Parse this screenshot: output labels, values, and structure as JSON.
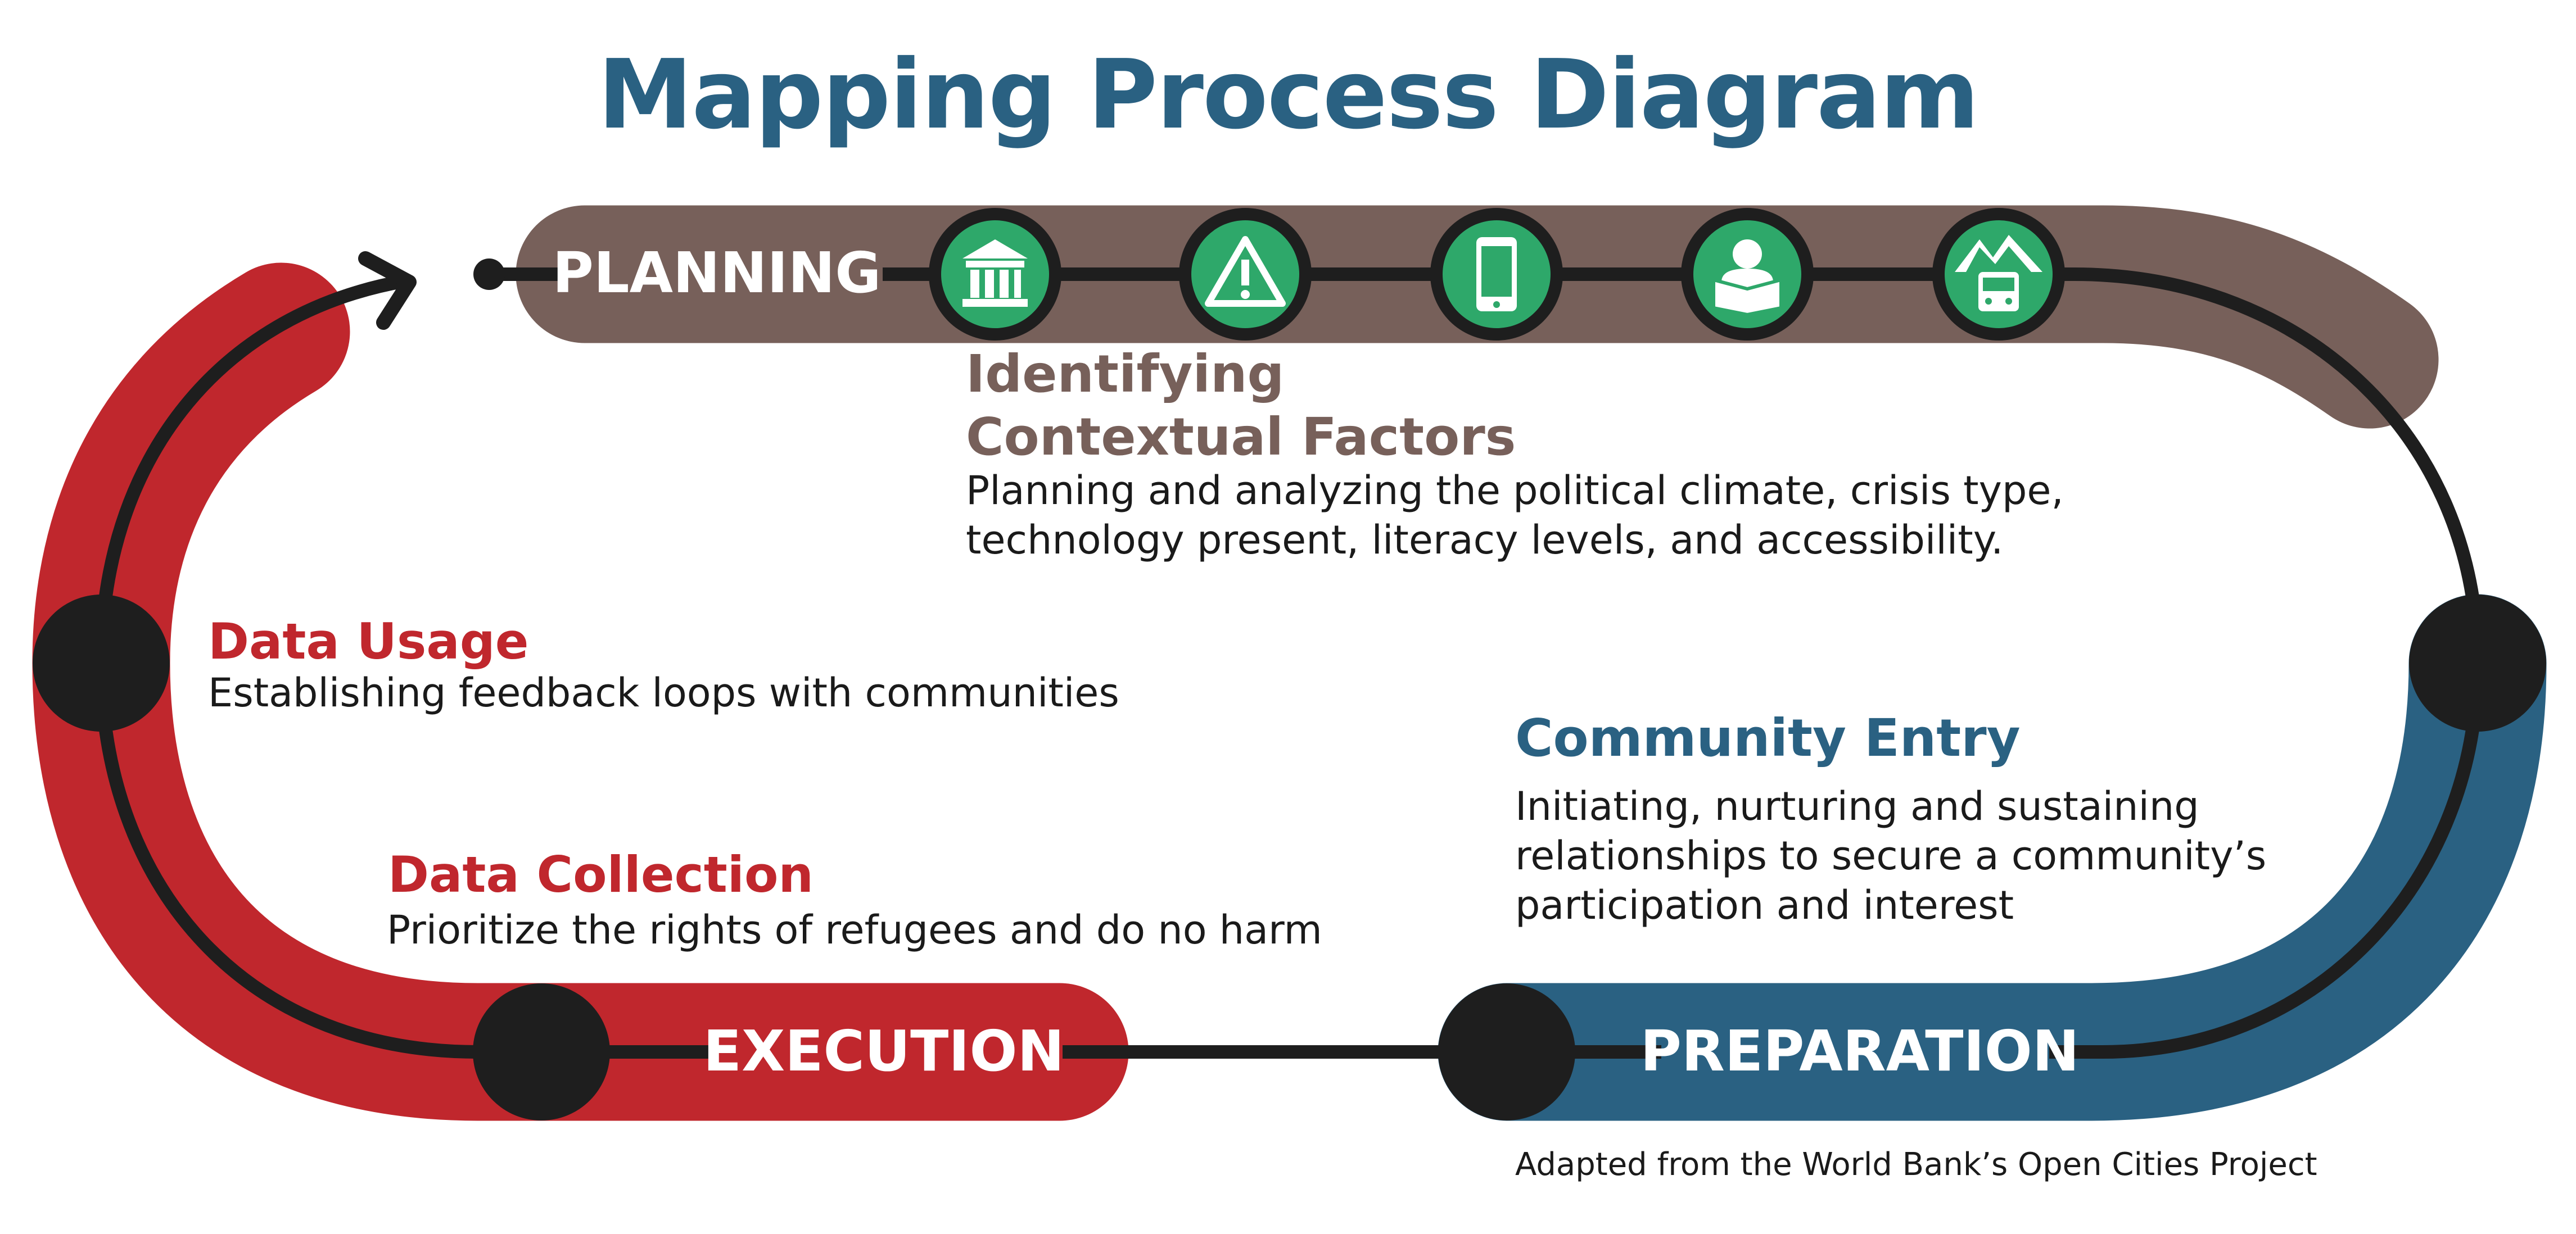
{
  "title": "Mapping Process Diagram",
  "stages": {
    "planning": "PLANNING",
    "preparation": "PREPARATION",
    "execution": "EXECUTION"
  },
  "sections": {
    "contextual": {
      "heading_line1": "Identifying",
      "heading_line2": "Contextual Factors",
      "body_line1": "Planning and analyzing the political climate, crisis type,",
      "body_line2": "technology present, literacy levels, and accessibility."
    },
    "community_entry": {
      "heading": "Community Entry",
      "body_line1": "Initiating, nurturing and sustaining",
      "body_line2": "relationships to secure a community’s",
      "body_line3": "participation and interest"
    },
    "data_usage": {
      "heading": "Data Usage",
      "body": "Establishing feedback loops with communities"
    },
    "data_collection": {
      "heading": "Data Collection",
      "body": "Prioritize the rights of refugees and do no harm"
    }
  },
  "icons": [
    "government-building-icon",
    "warning-icon",
    "mobile-phone-icon",
    "person-reading-icon",
    "mountain-bus-icon"
  ],
  "credit": "Adapted from the World Bank’s Open Cities Project",
  "colors": {
    "planning": "#77605a",
    "preparation": "#2a6182",
    "execution": "#c0272d",
    "icon_fill": "#2ea86a",
    "line": "#1e1e1e",
    "title": "#2a6182"
  }
}
